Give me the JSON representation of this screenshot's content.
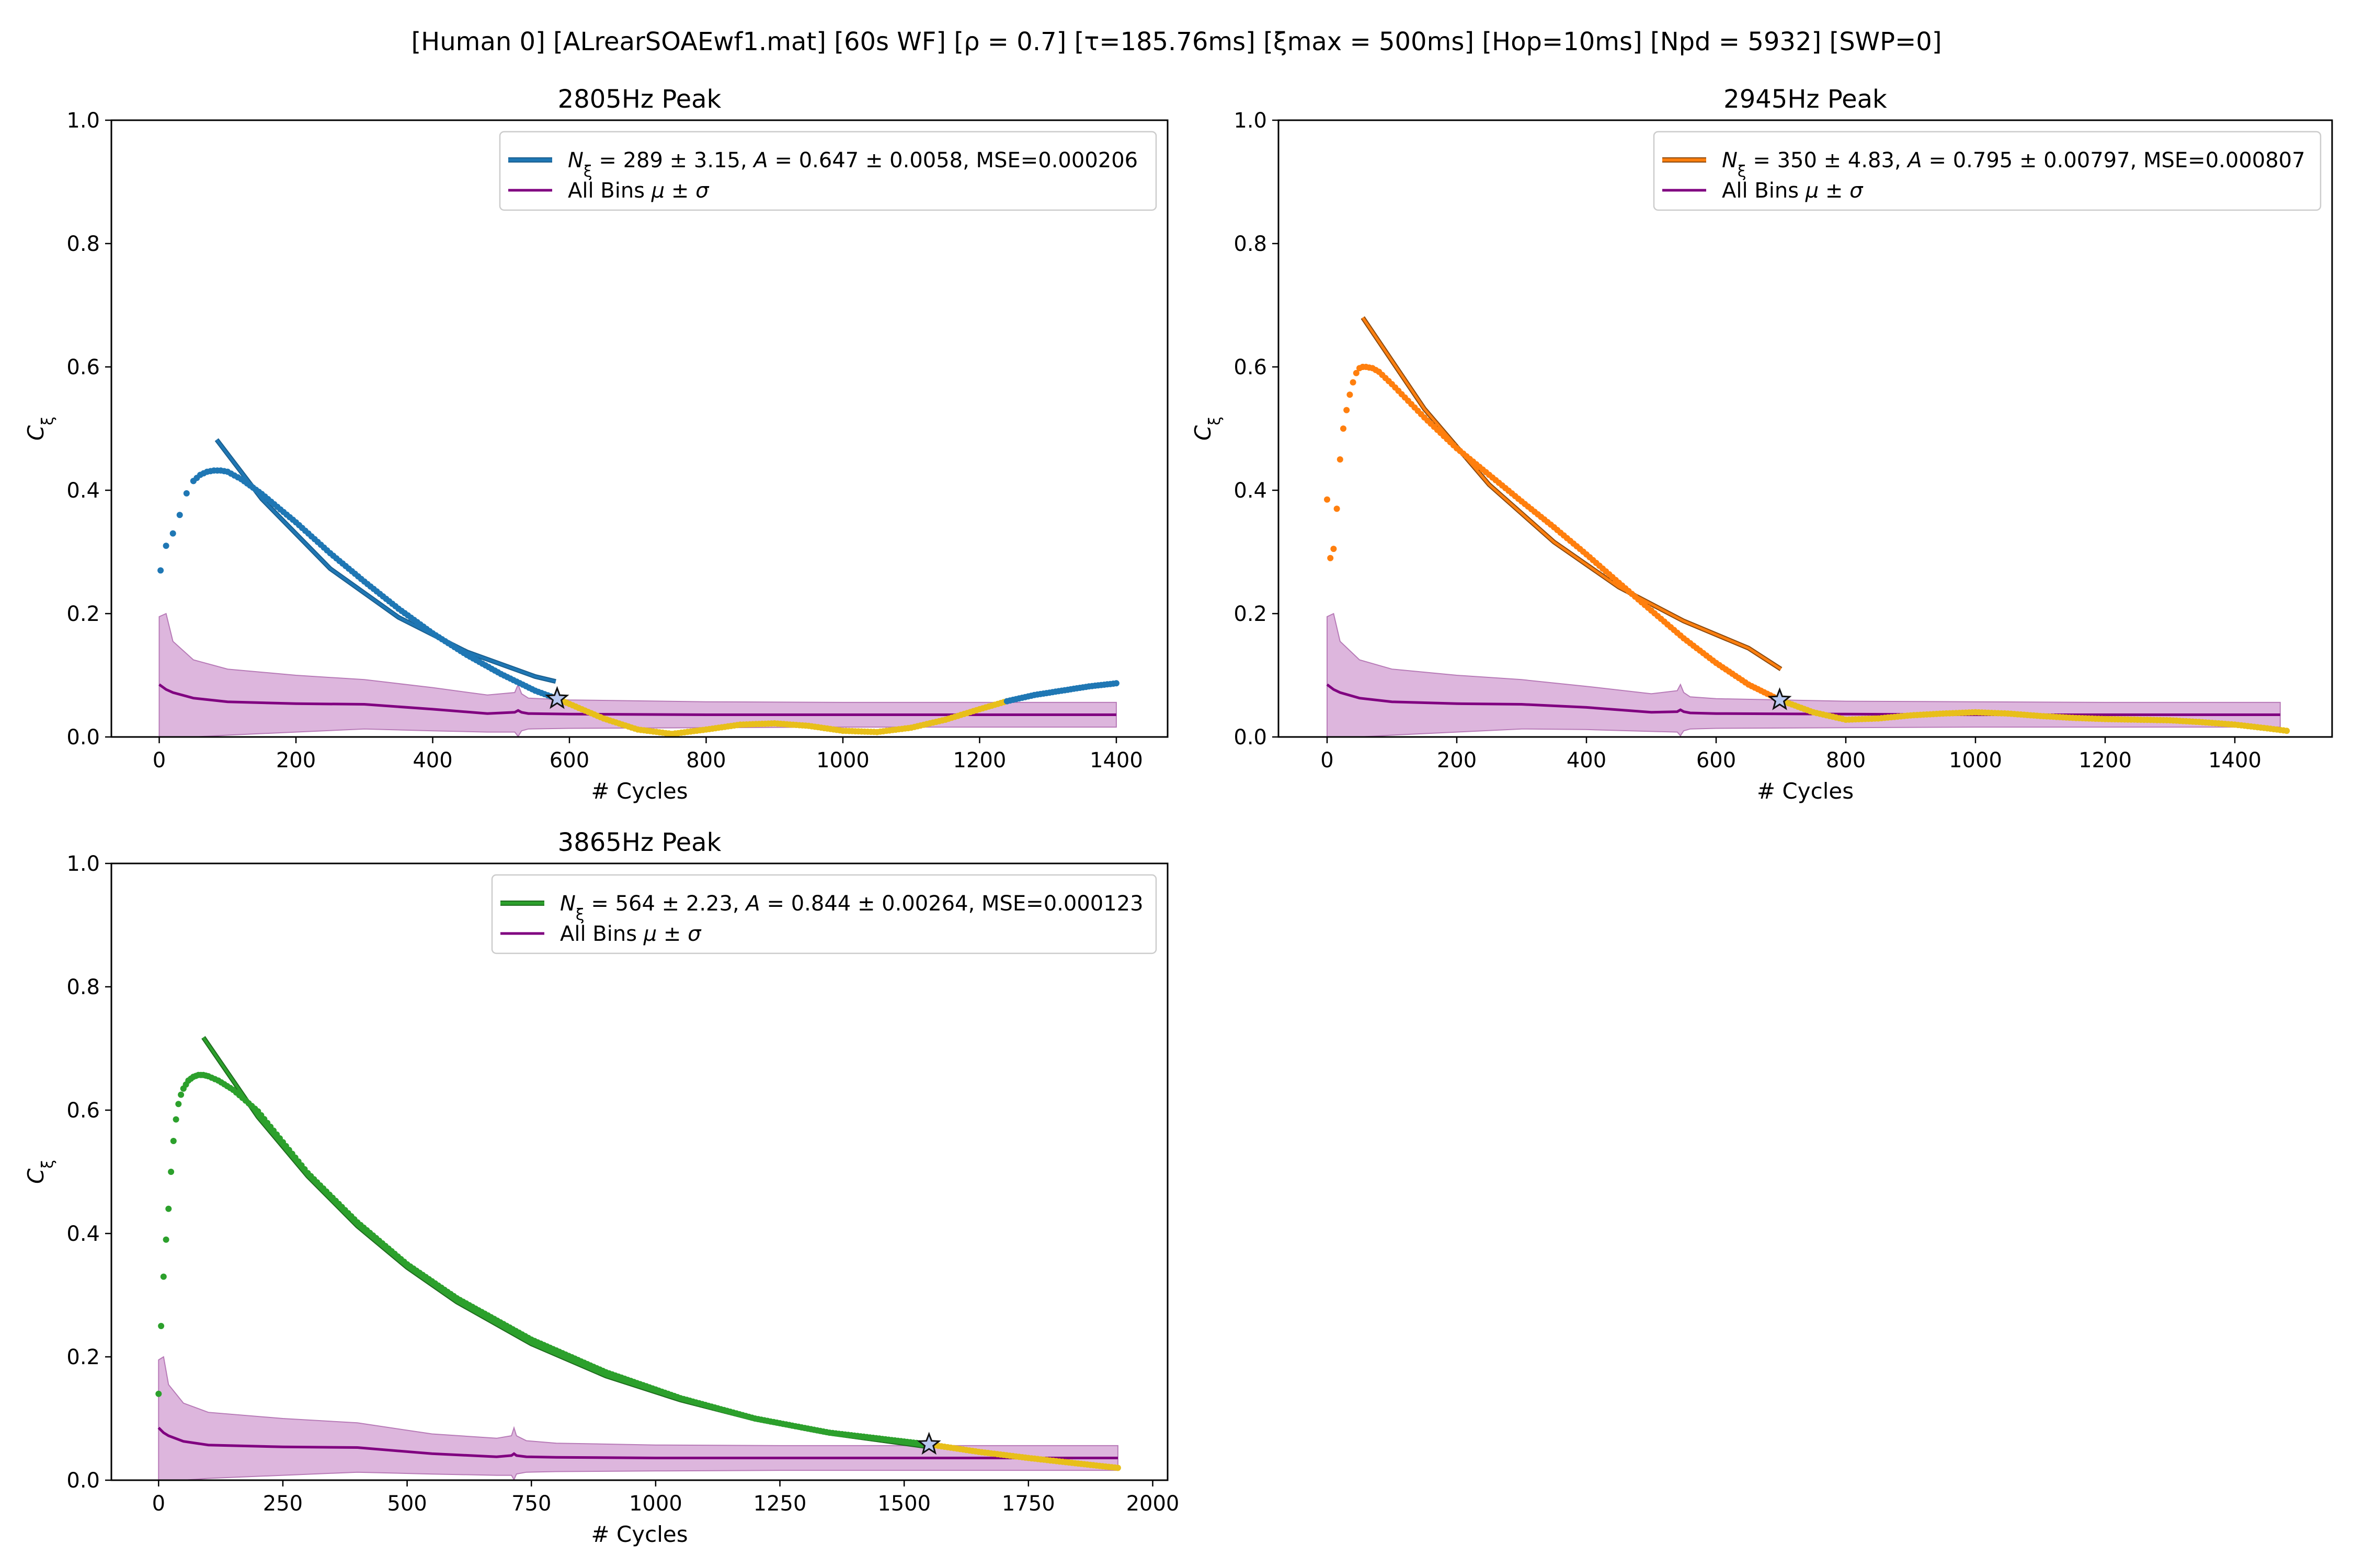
{
  "figure": {
    "suptitle": "[Human 0]   [ALrearSOAEwf1.mat]   [60s WF]   [ρ = 0.7]   [τ=185.76ms]   [ξmax = 500ms]   [Hop=10ms]   [Npd = 5932]   [SWP=0]"
  },
  "colors": {
    "fit_1": "#1f77b4",
    "fit_2": "#ff7f0e",
    "fit_3": "#2ca02c",
    "curve_tail": "#e8bf1a",
    "all_bins_line": "#800080",
    "all_bins_band": "#d7a9d7",
    "star_fill": "#b8c8f0"
  },
  "chart_data": [
    {
      "type": "scatter",
      "title": "2805Hz Peak",
      "xlabel": "# Cycles",
      "ylabel": "Cξ",
      "xlim": [
        -70,
        1475
      ],
      "ylim": [
        0,
        1
      ],
      "xticks": [
        "0",
        "200",
        "400",
        "600",
        "800",
        "1000",
        "1200",
        "1400"
      ],
      "yticks": [
        "0.0",
        "0.2",
        "0.4",
        "0.6",
        "0.8",
        "1.0"
      ],
      "grid": false,
      "legend_position": "top-right",
      "series": [
        {
          "name": "Nξ = 289 ± 3.15, A = 0.647 ± 0.0058, MSE=0.000206",
          "kind": "fit",
          "params": {
            "N": 289,
            "N_err": 3.15,
            "A": 0.647,
            "A_err": 0.0058,
            "MSE": 0.000206
          },
          "fit_x": [
            84,
            150,
            250,
            350,
            450,
            550,
            580
          ],
          "fit_y": [
            0.482,
            0.386,
            0.273,
            0.194,
            0.138,
            0.098,
            0.09
          ],
          "points_x": [
            2,
            10,
            20,
            30,
            40,
            50,
            60,
            70,
            80,
            90,
            100,
            120,
            150,
            200,
            250,
            300,
            350,
            400,
            450,
            500,
            550,
            582
          ],
          "points_y": [
            0.27,
            0.31,
            0.33,
            0.36,
            0.395,
            0.415,
            0.425,
            0.43,
            0.432,
            0.432,
            0.43,
            0.418,
            0.394,
            0.348,
            0.298,
            0.252,
            0.208,
            0.168,
            0.133,
            0.102,
            0.075,
            0.062
          ],
          "tail_x": [
            582,
            650,
            700,
            750,
            800,
            850,
            900,
            950,
            1000,
            1050,
            1100,
            1150,
            1200,
            1240
          ],
          "tail_y": [
            0.062,
            0.03,
            0.012,
            0.005,
            0.012,
            0.02,
            0.022,
            0.018,
            0.01,
            0.008,
            0.015,
            0.028,
            0.045,
            0.058
          ],
          "post_x": [
            1240,
            1280,
            1320,
            1360,
            1400
          ],
          "post_y": [
            0.058,
            0.068,
            0.075,
            0.082,
            0.087
          ],
          "star": {
            "x": 582,
            "y": 0.062
          }
        },
        {
          "name": "All Bins μ ± σ",
          "kind": "mean_band",
          "x": [
            0,
            10,
            20,
            50,
            100,
            200,
            300,
            400,
            480,
            520,
            525,
            530,
            540,
            600,
            800,
            1000,
            1200,
            1400
          ],
          "mean": [
            0.085,
            0.077,
            0.072,
            0.063,
            0.057,
            0.054,
            0.053,
            0.045,
            0.038,
            0.04,
            0.043,
            0.04,
            0.038,
            0.037,
            0.036,
            0.036,
            0.036,
            0.036
          ],
          "upper": [
            0.195,
            0.2,
            0.155,
            0.125,
            0.11,
            0.1,
            0.093,
            0.08,
            0.068,
            0.072,
            0.085,
            0.07,
            0.063,
            0.06,
            0.057,
            0.056,
            0.056,
            0.056
          ],
          "lower": [
            0.0,
            0.0,
            0.0,
            0.0,
            0.003,
            0.008,
            0.013,
            0.01,
            0.008,
            0.008,
            0.001,
            0.01,
            0.013,
            0.014,
            0.015,
            0.016,
            0.016,
            0.016
          ]
        }
      ]
    },
    {
      "type": "scatter",
      "title": "2945Hz Peak",
      "xlabel": "# Cycles",
      "ylabel": "Cξ",
      "xlim": [
        -75,
        1550
      ],
      "ylim": [
        0,
        1
      ],
      "xticks": [
        "0",
        "200",
        "400",
        "600",
        "800",
        "1000",
        "1200",
        "1400"
      ],
      "yticks": [
        "0.0",
        "0.2",
        "0.4",
        "0.6",
        "0.8",
        "1.0"
      ],
      "grid": false,
      "legend_position": "top-right",
      "series": [
        {
          "name": "Nξ = 350 ± 4.83, A = 0.795 ± 0.00797, MSE=0.000807",
          "kind": "fit",
          "params": {
            "N": 350,
            "N_err": 4.83,
            "A": 0.795,
            "A_err": 0.00797,
            "MSE": 0.000807
          },
          "fit_x": [
            55,
            150,
            250,
            350,
            450,
            550,
            650,
            700
          ],
          "fit_y": [
            0.68,
            0.532,
            0.409,
            0.316,
            0.243,
            0.188,
            0.144,
            0.11
          ],
          "points_x": [
            0,
            5,
            10,
            15,
            20,
            25,
            30,
            35,
            40,
            45,
            50,
            55,
            60,
            70,
            80,
            100,
            150,
            200,
            250,
            300,
            350,
            400,
            450,
            500,
            550,
            600,
            650,
            698
          ],
          "points_y": [
            0.385,
            0.29,
            0.305,
            0.37,
            0.45,
            0.5,
            0.53,
            0.555,
            0.575,
            0.59,
            0.598,
            0.6,
            0.6,
            0.598,
            0.592,
            0.572,
            0.518,
            0.468,
            0.425,
            0.382,
            0.34,
            0.296,
            0.25,
            0.205,
            0.16,
            0.12,
            0.085,
            0.06
          ],
          "tail_x": [
            698,
            750,
            800,
            850,
            900,
            950,
            1000,
            1050,
            1100,
            1150,
            1200,
            1250,
            1300,
            1350,
            1400,
            1450,
            1480
          ],
          "tail_y": [
            0.06,
            0.04,
            0.028,
            0.03,
            0.035,
            0.038,
            0.04,
            0.038,
            0.034,
            0.031,
            0.029,
            0.028,
            0.027,
            0.024,
            0.02,
            0.014,
            0.01
          ],
          "post_x": [],
          "post_y": [],
          "star": {
            "x": 698,
            "y": 0.06
          }
        },
        {
          "name": "All Bins μ ± σ",
          "kind": "mean_band",
          "x": [
            0,
            10,
            20,
            50,
            100,
            200,
            300,
            400,
            500,
            540,
            545,
            550,
            560,
            600,
            800,
            1000,
            1200,
            1400,
            1470
          ],
          "mean": [
            0.085,
            0.077,
            0.072,
            0.063,
            0.057,
            0.054,
            0.053,
            0.048,
            0.04,
            0.041,
            0.044,
            0.041,
            0.039,
            0.038,
            0.037,
            0.036,
            0.036,
            0.036,
            0.036
          ],
          "upper": [
            0.195,
            0.2,
            0.155,
            0.125,
            0.11,
            0.1,
            0.093,
            0.082,
            0.07,
            0.075,
            0.085,
            0.072,
            0.065,
            0.062,
            0.058,
            0.057,
            0.056,
            0.056,
            0.056
          ],
          "lower": [
            0.0,
            0.0,
            0.0,
            0.0,
            0.003,
            0.008,
            0.013,
            0.012,
            0.009,
            0.008,
            0.002,
            0.01,
            0.013,
            0.014,
            0.015,
            0.016,
            0.016,
            0.016,
            0.016
          ]
        }
      ]
    },
    {
      "type": "scatter",
      "title": "3865Hz Peak",
      "xlabel": "# Cycles",
      "ylabel": "Cξ",
      "xlim": [
        -95,
        2030
      ],
      "ylim": [
        0,
        1
      ],
      "xticks": [
        "0",
        "250",
        "500",
        "750",
        "1000",
        "1250",
        "1500",
        "1750",
        "2000"
      ],
      "yticks": [
        "0.0",
        "0.2",
        "0.4",
        "0.6",
        "0.8",
        "1.0"
      ],
      "grid": false,
      "legend_position": "top-right",
      "series": [
        {
          "name": "Nξ = 564 ± 2.23, A = 0.844 ± 0.00264, MSE=0.000123",
          "kind": "fit",
          "params": {
            "N": 564,
            "N_err": 2.23,
            "A": 0.844,
            "A_err": 0.00264,
            "MSE": 0.000123
          },
          "fit_x": [
            90,
            200,
            300,
            400,
            500,
            600,
            750,
            900,
            1050,
            1200,
            1350,
            1550
          ],
          "fit_y": [
            0.718,
            0.589,
            0.493,
            0.412,
            0.345,
            0.289,
            0.221,
            0.169,
            0.13,
            0.099,
            0.076,
            0.054
          ],
          "points_x": [
            0,
            5,
            10,
            15,
            20,
            25,
            30,
            35,
            40,
            45,
            50,
            60,
            70,
            80,
            90,
            100,
            120,
            150,
            200,
            300,
            400,
            500,
            600,
            750,
            900,
            1050,
            1200,
            1350,
            1550
          ],
          "points_y": [
            0.14,
            0.25,
            0.33,
            0.39,
            0.44,
            0.5,
            0.55,
            0.585,
            0.61,
            0.625,
            0.635,
            0.648,
            0.654,
            0.657,
            0.657,
            0.655,
            0.648,
            0.633,
            0.598,
            0.498,
            0.418,
            0.35,
            0.295,
            0.228,
            0.175,
            0.133,
            0.1,
            0.077,
            0.058
          ],
          "tail_x": [
            1550,
            1650,
            1750,
            1850,
            1930
          ],
          "tail_y": [
            0.058,
            0.046,
            0.036,
            0.027,
            0.02
          ],
          "post_x": [],
          "post_y": [],
          "star": {
            "x": 1550,
            "y": 0.058
          }
        },
        {
          "name": "All Bins μ ± σ",
          "kind": "mean_band",
          "x": [
            0,
            10,
            20,
            50,
            100,
            250,
            400,
            550,
            680,
            710,
            715,
            720,
            740,
            800,
            1000,
            1250,
            1500,
            1750,
            1930
          ],
          "mean": [
            0.085,
            0.077,
            0.072,
            0.063,
            0.057,
            0.054,
            0.053,
            0.043,
            0.038,
            0.04,
            0.043,
            0.04,
            0.038,
            0.037,
            0.036,
            0.036,
            0.036,
            0.036,
            0.036
          ],
          "upper": [
            0.195,
            0.2,
            0.155,
            0.125,
            0.11,
            0.1,
            0.093,
            0.075,
            0.068,
            0.072,
            0.085,
            0.072,
            0.064,
            0.06,
            0.057,
            0.056,
            0.056,
            0.056,
            0.056
          ],
          "lower": [
            0.0,
            0.0,
            0.0,
            0.0,
            0.003,
            0.008,
            0.013,
            0.01,
            0.008,
            0.008,
            0.001,
            0.01,
            0.013,
            0.014,
            0.015,
            0.016,
            0.016,
            0.016,
            0.016
          ]
        }
      ]
    }
  ]
}
